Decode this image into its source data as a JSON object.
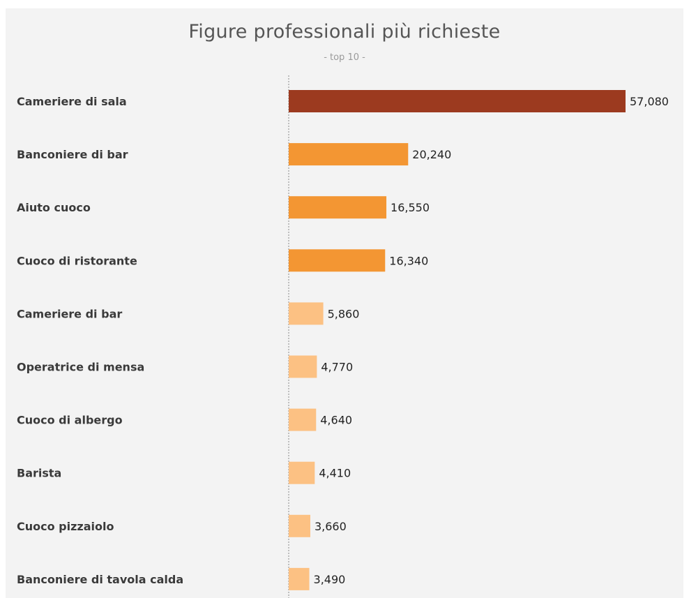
{
  "chart_data": {
    "type": "bar",
    "orientation": "horizontal",
    "title": "Figure professionali più richieste",
    "subtitle": "- top 10 -",
    "categories": [
      "Cameriere di sala",
      "Banconiere di bar",
      "Aiuto cuoco",
      "Cuoco di ristorante",
      "Cameriere di bar",
      "Operatrice di mensa",
      "Cuoco di albergo",
      "Barista",
      "Cuoco pizzaiolo",
      "Banconiere di tavola calda"
    ],
    "values": [
      57080,
      20240,
      16550,
      16340,
      5860,
      4770,
      4640,
      4410,
      3660,
      3490
    ],
    "value_labels": [
      "57,080",
      "20,240",
      "16,550",
      "16,340",
      "5,860",
      "4,770",
      "4,640",
      "4,410",
      "3,660",
      "3,490"
    ],
    "xlim": [
      0,
      57080
    ],
    "grid": false,
    "colors": {
      "high": "#9c3a1f",
      "mid": "#f39633",
      "low": "#fcc183",
      "baseline": "#8a8a8a",
      "background": "#f3f3f3"
    },
    "color_groups": [
      "high",
      "mid",
      "mid",
      "mid",
      "low",
      "low",
      "low",
      "low",
      "low",
      "low"
    ]
  }
}
